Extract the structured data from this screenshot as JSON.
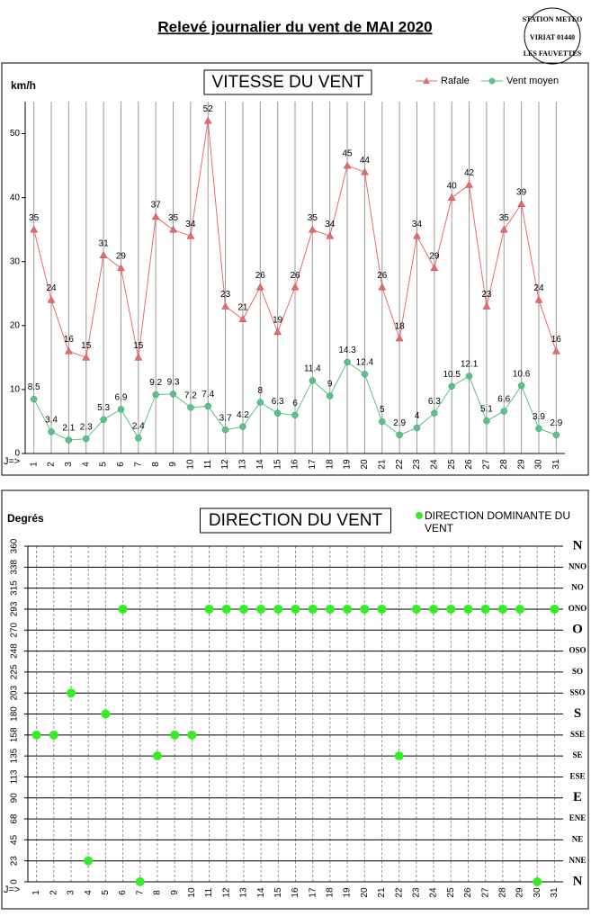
{
  "header": {
    "title": "Relevé journalier du vent de MAI 2020",
    "stamp": [
      "STATION METEO",
      "VIRIAT 01440",
      "LES FAUVETTES"
    ]
  },
  "chart_data": [
    {
      "type": "line",
      "title": "VITESSE DU VENT",
      "ylabel": "km/h",
      "xlabel": "J=>",
      "categories": [
        "1",
        "2",
        "3",
        "4",
        "5",
        "6",
        "7",
        "8",
        "9",
        "10",
        "11",
        "12",
        "13",
        "14",
        "15",
        "16",
        "17",
        "18",
        "19",
        "20",
        "21",
        "22",
        "23",
        "24",
        "25",
        "26",
        "27",
        "28",
        "29",
        "30",
        "31"
      ],
      "series": [
        {
          "name": "Rafale",
          "color": "#e86a6a",
          "marker": "triangle",
          "values": [
            35,
            24,
            16,
            15,
            31,
            29,
            15,
            37,
            35,
            34,
            52,
            23,
            21,
            26,
            19,
            26,
            35,
            34,
            45,
            44,
            26,
            18,
            34,
            29,
            40,
            42,
            23,
            35,
            39,
            24,
            16
          ]
        },
        {
          "name": "Vent moyen",
          "color": "#5cc08a",
          "marker": "circle",
          "values": [
            8.5,
            3.4,
            2.1,
            2.3,
            5.3,
            6.9,
            2.4,
            9.2,
            9.3,
            7.2,
            7.4,
            3.7,
            4.2,
            8,
            6.3,
            6,
            11.4,
            9,
            14.3,
            12.4,
            5,
            2.9,
            4,
            6.3,
            10.5,
            12.1,
            5.1,
            6.6,
            10.6,
            3.9,
            2.9
          ]
        }
      ],
      "ylim": [
        0,
        55
      ],
      "yticks": [
        0,
        10,
        20,
        30,
        40,
        50
      ],
      "grid": "x"
    },
    {
      "type": "scatter",
      "title": "DIRECTION DU VENT",
      "ylabel": "Degrés",
      "xlabel": "J=>",
      "categories": [
        "1",
        "2",
        "3",
        "4",
        "5",
        "6",
        "7",
        "8",
        "9",
        "10",
        "11",
        "12",
        "13",
        "14",
        "15",
        "16",
        "17",
        "18",
        "19",
        "20",
        "21",
        "22",
        "23",
        "24",
        "25",
        "26",
        "27",
        "28",
        "29",
        "30",
        "31"
      ],
      "series": [
        {
          "name": "DIRECTION DOMINANTE DU VENT",
          "color": "#33ee22",
          "values": [
            157.5,
            157.5,
            202.5,
            22.5,
            180,
            292.5,
            0,
            135,
            157.5,
            157.5,
            292.5,
            292.5,
            292.5,
            292.5,
            292.5,
            292.5,
            292.5,
            292.5,
            292.5,
            292.5,
            292.5,
            135,
            292.5,
            292.5,
            292.5,
            292.5,
            292.5,
            292.5,
            292.5,
            0,
            292.5
          ]
        }
      ],
      "ylim": [
        0,
        360
      ],
      "yticks": [
        0,
        {
          "value": 22.5,
          "label": "23"
        },
        45,
        {
          "value": 67.5,
          "label": "68"
        },
        90,
        {
          "value": 112.5,
          "label": "113"
        },
        135,
        {
          "value": 157.5,
          "label": "158"
        },
        180,
        {
          "value": 202.5,
          "label": "203"
        },
        225,
        {
          "value": 247.5,
          "label": "248"
        },
        270,
        {
          "value": 292.5,
          "label": "293"
        },
        315,
        {
          "value": 337.5,
          "label": "338"
        },
        360
      ],
      "y2lim": [
        0,
        360
      ],
      "y2ticks": [
        {
          "value": 0,
          "label": "N"
        },
        {
          "value": 22.5,
          "label": "NNE"
        },
        {
          "value": 45,
          "label": "NE"
        },
        {
          "value": 67.5,
          "label": "ENE"
        },
        {
          "value": 90,
          "label": "E"
        },
        {
          "value": 112.5,
          "label": "ESE"
        },
        {
          "value": 135,
          "label": "SE"
        },
        {
          "value": 157.5,
          "label": "SSE"
        },
        {
          "value": 180,
          "label": "S"
        },
        {
          "value": 202.5,
          "label": "SSO"
        },
        {
          "value": 225,
          "label": "SO"
        },
        {
          "value": 247.5,
          "label": "OSO"
        },
        {
          "value": 270,
          "label": "O"
        },
        {
          "value": 292.5,
          "label": "ONO"
        },
        {
          "value": 315,
          "label": "NO"
        },
        {
          "value": 337.5,
          "label": "NNO"
        },
        {
          "value": 360,
          "label": "N"
        }
      ],
      "grid": "both"
    }
  ]
}
